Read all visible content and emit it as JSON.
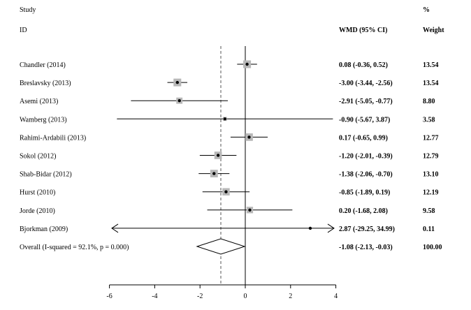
{
  "headers": {
    "study": "Study",
    "id": "ID",
    "wmd": "WMD (95% CI)",
    "pct": "%",
    "weight": "Weight"
  },
  "chart_data": {
    "type": "forest",
    "xticks": [
      -6,
      -4,
      -2,
      0,
      2,
      4
    ],
    "xlim": [
      -6,
      4
    ],
    "null_line": 0,
    "overall_line": -1.08,
    "studies": [
      {
        "label": "Chandler (2014)",
        "est": 0.08,
        "lo": -0.36,
        "hi": 0.52,
        "ci_text": "0.08 (-0.36, 0.52)",
        "weight": "13.54",
        "w": 13.54
      },
      {
        "label": "Breslavsky  (2013)",
        "est": -3.0,
        "lo": -3.44,
        "hi": -2.56,
        "ci_text": "-3.00 (-3.44, -2.56)",
        "weight": "13.54",
        "w": 13.54
      },
      {
        "label": "Asemi (2013)",
        "est": -2.91,
        "lo": -5.05,
        "hi": -0.77,
        "ci_text": "-2.91 (-5.05, -0.77)",
        "weight": "8.80",
        "w": 8.8
      },
      {
        "label": "Wamberg (2013)",
        "est": -0.9,
        "lo": -5.67,
        "hi": 3.87,
        "ci_text": "-0.90 (-5.67, 3.87)",
        "weight": "3.58",
        "w": 3.58
      },
      {
        "label": "Rahimi-Ardabili (2013)",
        "est": 0.17,
        "lo": -0.65,
        "hi": 0.99,
        "ci_text": "0.17 (-0.65, 0.99)",
        "weight": "12.77",
        "w": 12.77
      },
      {
        "label": "Sokol (2012)",
        "est": -1.2,
        "lo": -2.01,
        "hi": -0.39,
        "ci_text": "-1.20 (-2.01, -0.39)",
        "weight": "12.79",
        "w": 12.79
      },
      {
        "label": "Shab-Bidar  (2012)",
        "est": -1.38,
        "lo": -2.06,
        "hi": -0.7,
        "ci_text": "-1.38 (-2.06, -0.70)",
        "weight": "13.10",
        "w": 13.1
      },
      {
        "label": "Hurst (2010)",
        "est": -0.85,
        "lo": -1.89,
        "hi": 0.19,
        "ci_text": "-0.85 (-1.89, 0.19)",
        "weight": "12.19",
        "w": 12.19
      },
      {
        "label": "Jorde (2010)",
        "est": 0.2,
        "lo": -1.68,
        "hi": 2.08,
        "ci_text": "0.20 (-1.68, 2.08)",
        "weight": "9.58",
        "w": 9.58
      },
      {
        "label": "Bjorkman (2009)",
        "est": 2.87,
        "lo": -29.25,
        "hi": 34.99,
        "ci_text": "2.87 (-29.25, 34.99)",
        "weight": "0.11",
        "w": 0.11
      }
    ],
    "overall": {
      "label": "Overall  (I-squared = 92.1%, p = 0.000)",
      "est": -1.08,
      "lo": -2.13,
      "hi": -0.03,
      "ci_text": "-1.08 (-2.13, -0.03)",
      "weight": "100.00"
    }
  }
}
